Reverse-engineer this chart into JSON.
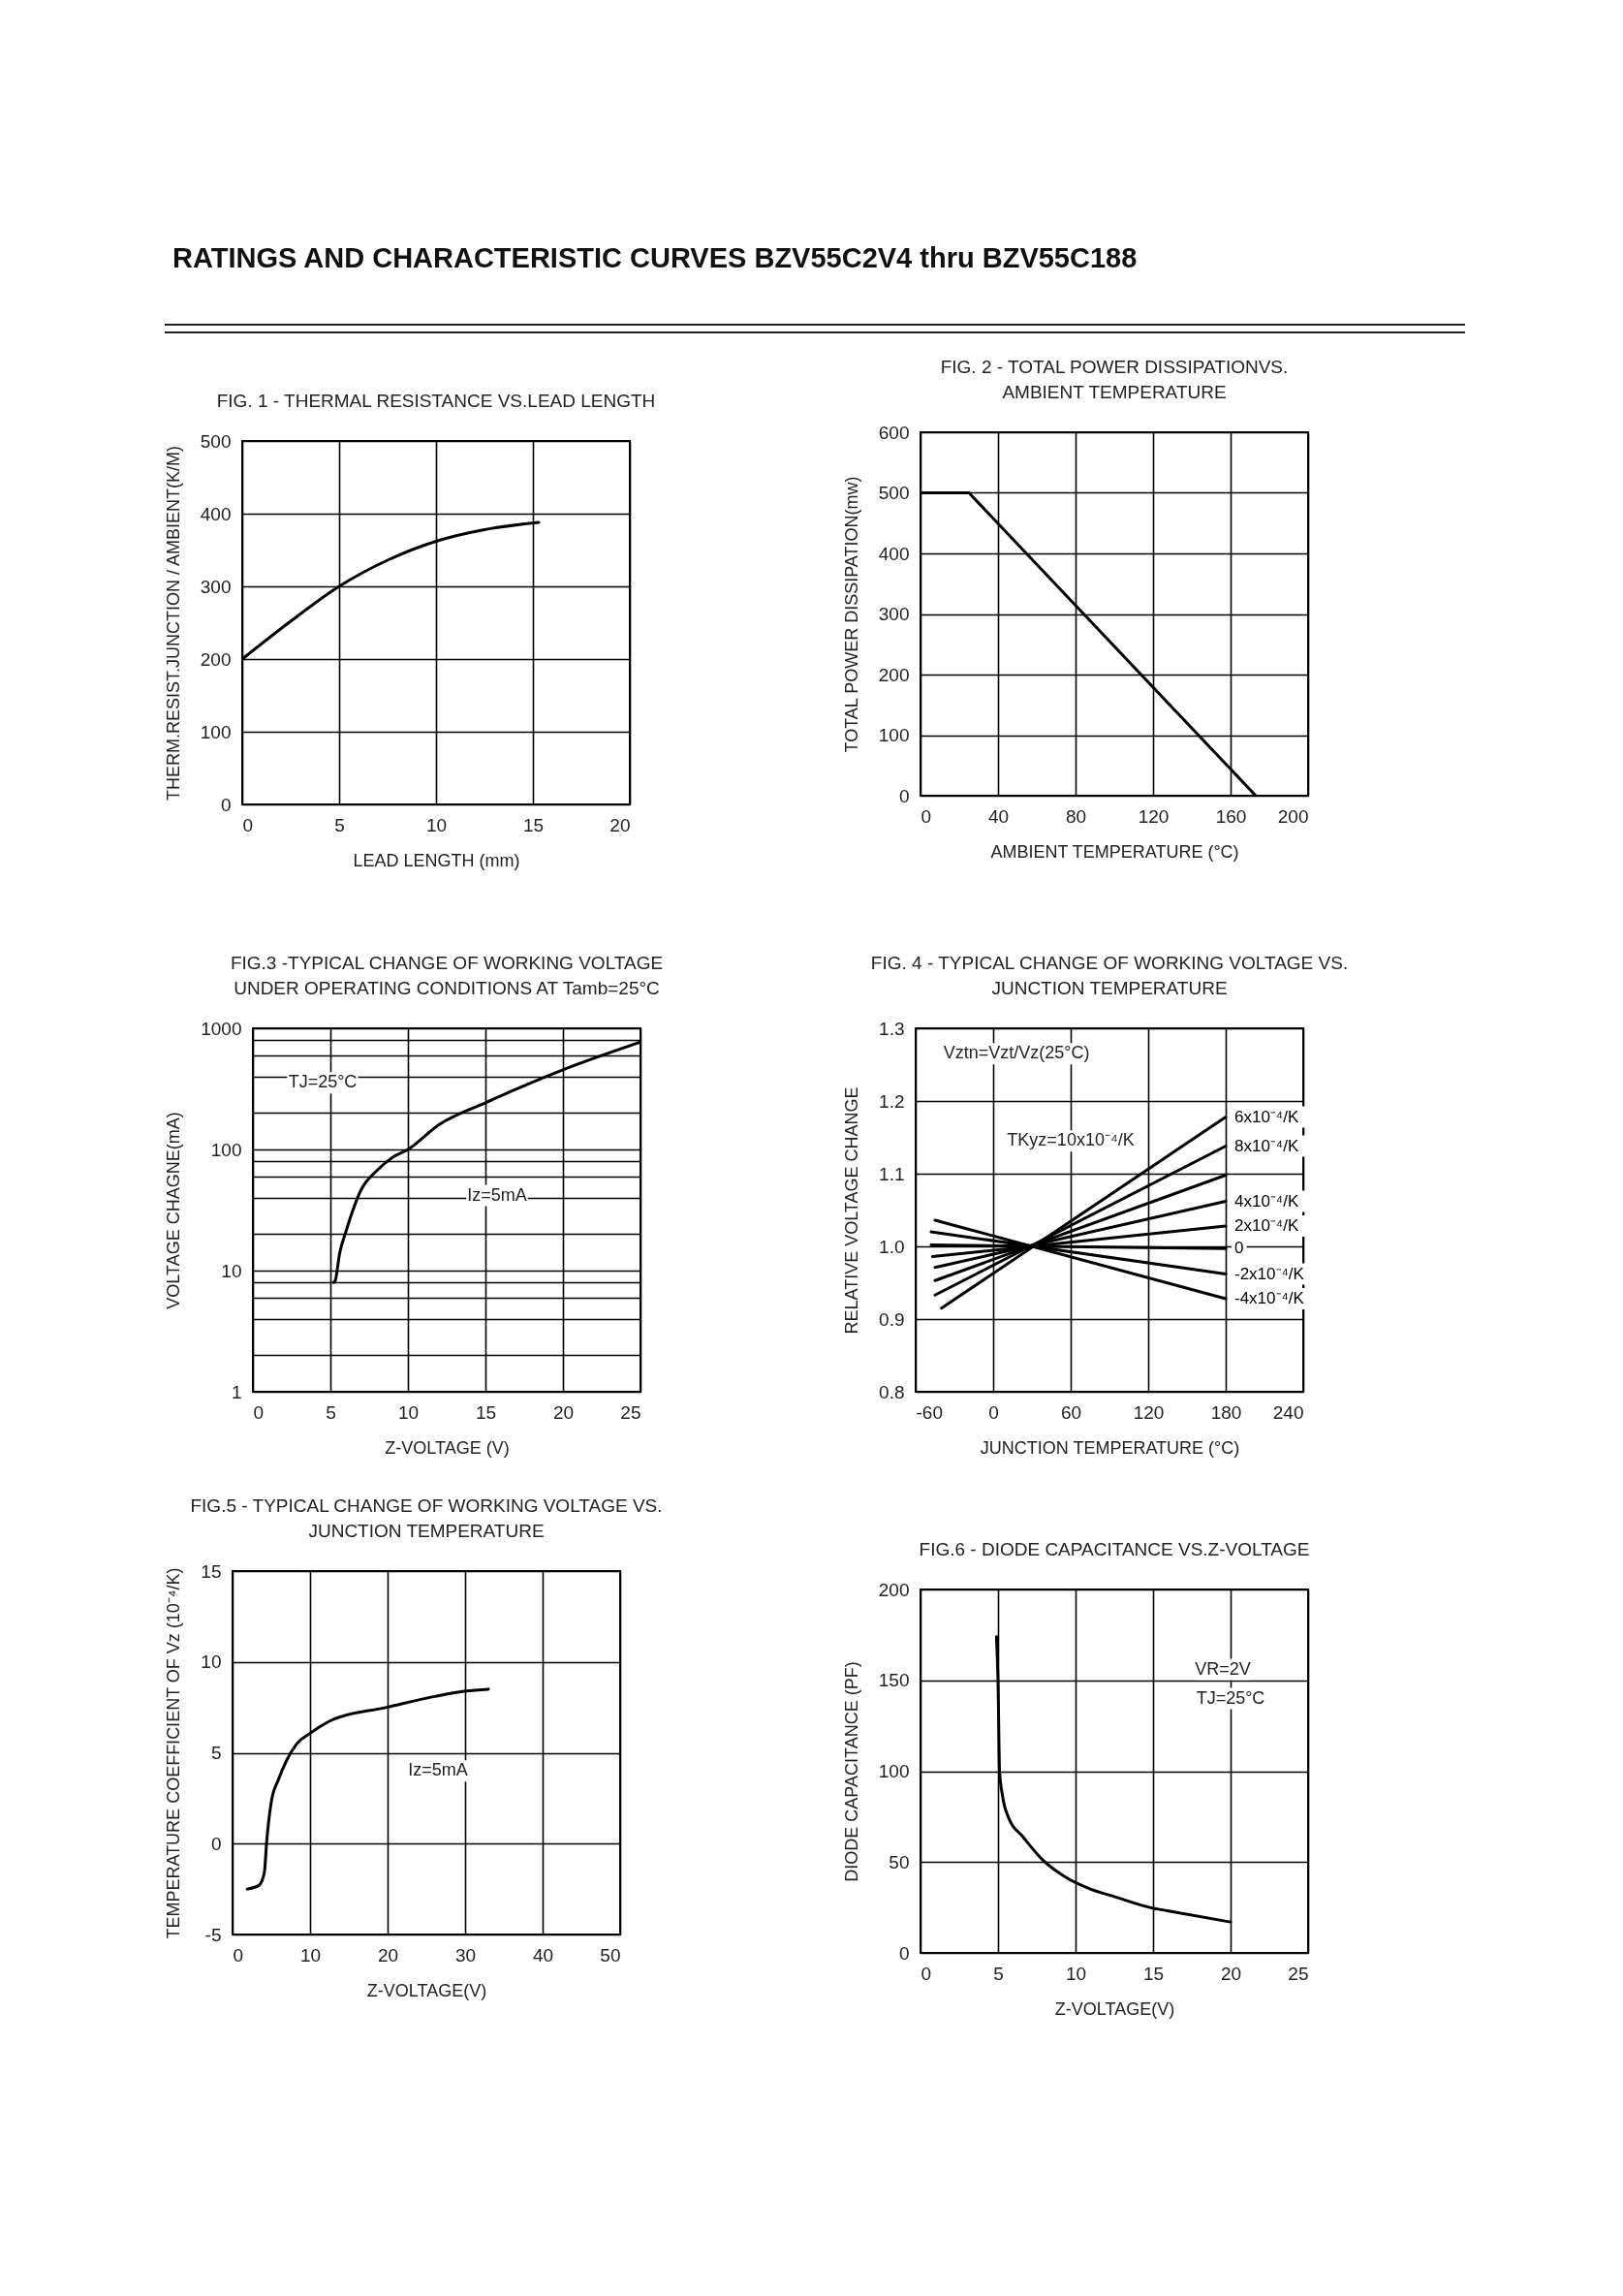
{
  "chart_data": [
    {
      "type": "line",
      "title": "FIG. 1 - THERMAL RESISTANCE VS.LEAD LENGTH",
      "xlabel": "LEAD LENGTH (mm)",
      "ylabel": "THERM.RESIST.JUNCTION / AMBIENT(K/M)",
      "annotations": [
        "RATINGS AND CHARACTERISTIC CURVES BZV55C2V4 thru BZV55C188"
      ],
      "xlim": [
        0,
        20
      ],
      "xticks": [
        0,
        5,
        10,
        15,
        20
      ],
      "ylim": [
        0,
        500
      ],
      "yticks": [
        0,
        100,
        200,
        300,
        400,
        500
      ],
      "grid": true,
      "series": [
        {
          "color": "#000000",
          "x": [
            0,
            2.5,
            5,
            7.5,
            10,
            12.5,
            15.3
          ],
          "values": [
            200,
            252,
            300,
            336,
            362,
            378,
            388
          ]
        }
      ]
    },
    {
      "type": "line",
      "title": "FIG. 2 - TOTAL POWER DISSIPATIONVS.\nAMBIENT TEMPERATURE",
      "xlabel": "AMBIENT TEMPERATURE (°C)",
      "ylabel": "TOTAL POWER DISSIPATION(mw)",
      "xlim": [
        0,
        200
      ],
      "xticks": [
        0,
        40,
        80,
        120,
        160,
        200
      ],
      "ylim": [
        0,
        600
      ],
      "yticks": [
        0,
        100,
        200,
        300,
        400,
        500,
        600
      ],
      "grid": true,
      "series": [
        {
          "color": "#000000",
          "x": [
            0,
            25,
            173
          ],
          "values": [
            500,
            500,
            0
          ]
        }
      ]
    },
    {
      "type": "line",
      "title": "FIG.3 -TYPICAL CHANGE OF WORKING VOLTAGE\nUNDER OPERATING CONDITIONS AT Tamb=25°C",
      "xlabel": "Z-VOLTAGE (V)",
      "ylabel": "VOLTAGE CHAGNE(mA)",
      "annotations": [
        "TJ=25°C",
        "Iz=5mA"
      ],
      "log": "y",
      "xlim": [
        0,
        25
      ],
      "xticks": [
        0,
        5,
        10,
        15,
        20,
        25
      ],
      "ylim": [
        1,
        1000
      ],
      "yticks": [
        1,
        {
          "value": 2,
          "label": null
        },
        {
          "value": 4,
          "label": null
        },
        {
          "value": 6,
          "label": null
        },
        {
          "value": 8,
          "label": null
        },
        10,
        {
          "value": 20,
          "label": null
        },
        {
          "value": 40,
          "label": null
        },
        {
          "value": 60,
          "label": null
        },
        {
          "value": 80,
          "label": null
        },
        100,
        {
          "value": 200,
          "label": null
        },
        {
          "value": 400,
          "label": null
        },
        {
          "value": 600,
          "label": null
        },
        {
          "value": 800,
          "label": null
        },
        1000
      ],
      "grid": true,
      "series": [
        {
          "color": "#000000",
          "x": [
            5.2,
            5.3,
            5.6,
            6,
            7,
            8,
            9,
            10,
            12,
            15,
            20,
            25
          ],
          "values": [
            8,
            8.2,
            14,
            21,
            47,
            67,
            86,
            100,
            160,
            243,
            454,
            769
          ]
        }
      ]
    },
    {
      "type": "line",
      "title": "FIG. 4 - TYPICAL CHANGE OF WORKING VOLTAGE VS.\nJUNCTION TEMPERATURE",
      "xlabel": "JUNCTION TEMPERATURE (°C)",
      "ylabel": "RELATIVE VOLTAGE CHANGE",
      "annotations": [
        "Vztn=Vzt/Vz(25°C)",
        "TKyz=10x10⁻⁴/K"
      ],
      "xlim": [
        -60,
        240
      ],
      "xticks": [
        -60,
        0,
        60,
        120,
        180,
        240
      ],
      "ylim": [
        0.8,
        1.3
      ],
      "yticks": [
        0.8,
        0.9,
        {
          "value": 1,
          "label": "1.0"
        },
        1.1,
        1.2,
        1.3
      ],
      "grid": true,
      "series": [
        {
          "name": "6x10⁻⁴/K",
          "color": "#000000",
          "x": [
            -40,
            180
          ],
          "values": [
            0.915,
            1.178
          ]
        },
        {
          "name": "8x10⁻⁴/K",
          "color": "#000000",
          "x": [
            -45,
            180
          ],
          "values": [
            0.933,
            1.138
          ]
        },
        {
          "color": "#000000",
          "x": [
            -45,
            180
          ],
          "values": [
            0.953,
            1.098
          ]
        },
        {
          "name": "4x10⁻⁴/K",
          "color": "#000000",
          "x": [
            -45,
            180
          ],
          "values": [
            0.971,
            1.062
          ]
        },
        {
          "name": "2x10⁻⁴/K",
          "color": "#000000",
          "x": [
            -47,
            180
          ],
          "values": [
            0.986,
            1.028
          ]
        },
        {
          "name": "0",
          "color": "#000000",
          "x": [
            -48,
            180
          ],
          "values": [
            1.002,
            0.997
          ]
        },
        {
          "name": "-2x10⁻⁴/K",
          "color": "#000000",
          "x": [
            -48,
            180
          ],
          "values": [
            1.02,
            0.962
          ]
        },
        {
          "name": "-4x10⁻⁴/K",
          "color": "#000000",
          "x": [
            -45,
            180
          ],
          "values": [
            1.036,
            0.928
          ]
        }
      ]
    },
    {
      "type": "line",
      "title": "FIG.5 - TYPICAL CHANGE OF WORKING VOLTAGE VS.\nJUNCTION TEMPERATURE",
      "xlabel": "Z-VOLTAGE(V)",
      "ylabel": "TEMPERATURE COEFFICIENT OF Vz (10⁻⁴/K)",
      "annotations": [
        "Iz=5mA"
      ],
      "xlim": [
        0,
        50
      ],
      "xticks": [
        0,
        10,
        20,
        30,
        40,
        50
      ],
      "ylim": [
        -5,
        15
      ],
      "yticks": [
        -5,
        0,
        5,
        10,
        15
      ],
      "grid": true,
      "series": [
        {
          "color": "#000000",
          "x": [
            1.9,
            3.4,
            4.1,
            4.4,
            5.0,
            5.9,
            7.0,
            8.3,
            10.1,
            12.8,
            19.9,
            26.1,
            30.1,
            33
          ],
          "values": [
            -2.5,
            -2.3,
            -1.6,
            0.1,
            2.3,
            3.5,
            4.6,
            5.5,
            6.1,
            6.8,
            7.5,
            8.1,
            8.4,
            8.5
          ]
        }
      ]
    },
    {
      "type": "line",
      "title": "FIG.6 - DIODE CAPACITANCE VS.Z-VOLTAGE",
      "xlabel": "Z-VOLTAGE(V)",
      "ylabel": "DIODE CAPACITANCE (PF)",
      "annotations": [
        "VR=2V",
        "TJ=25°C"
      ],
      "xlim": [
        0,
        25
      ],
      "xticks": [
        0,
        5,
        10,
        15,
        20,
        25
      ],
      "ylim": [
        0,
        200
      ],
      "yticks": [
        0,
        50,
        100,
        150,
        200
      ],
      "grid": true,
      "series": [
        {
          "color": "#000000",
          "x": [
            4.9,
            5.0,
            5.1,
            5.3,
            5.7,
            6.6,
            7.9,
            9.3,
            11.0,
            12.5,
            14.8,
            16.7,
            20.0
          ],
          "values": [
            174,
            149,
            100,
            86,
            74,
            64,
            51,
            42,
            35,
            31,
            25,
            22,
            17
          ]
        }
      ]
    }
  ]
}
